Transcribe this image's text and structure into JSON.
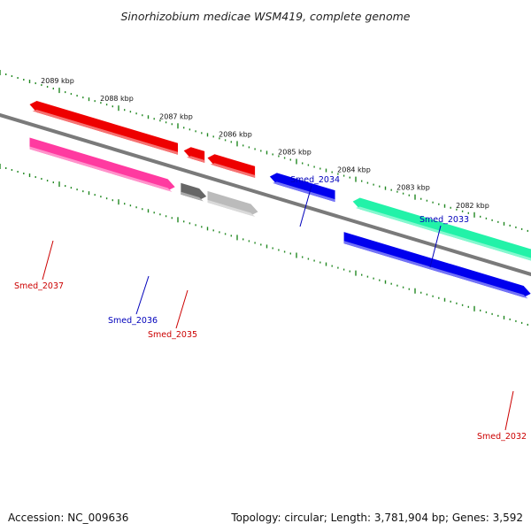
{
  "title": "Sinorhizobium medicae WSM419, complete genome",
  "scale_labels": [
    {
      "text": "2089 kbp",
      "pos": 2089
    },
    {
      "text": "2088 kbp",
      "pos": 2088
    },
    {
      "text": "2087 kbp",
      "pos": 2087
    },
    {
      "text": "2086 kbp",
      "pos": 2086
    },
    {
      "text": "2085 kbp",
      "pos": 2085
    },
    {
      "text": "2084 kbp",
      "pos": 2084
    },
    {
      "text": "2083 kbp",
      "pos": 2083
    },
    {
      "text": "2082 kbp",
      "pos": 2082
    }
  ],
  "genes": [
    {
      "name": "Smed_2037",
      "label": "Smed_2037",
      "color": "#ff3aa0",
      "ring": "inner",
      "strand": "reverse",
      "start": 2087.05,
      "end": 2089.5
    },
    {
      "name": "Smed_2037b",
      "label": "",
      "color": "#ee0000",
      "ring": "outer",
      "strand": "forward",
      "start": 2087.0,
      "end": 2089.5
    },
    {
      "name": "Smed_2036",
      "label": "Smed_2036",
      "color": "#ee0000",
      "ring": "outer",
      "strand": "forward",
      "start": 2086.55,
      "end": 2086.9
    },
    {
      "name": "Smed_2036b",
      "label": "",
      "color": "#666666",
      "ring": "inner",
      "strand": "reverse",
      "start": 2086.52,
      "end": 2086.95
    },
    {
      "name": "Smed_2035",
      "label": "Smed_2035",
      "color": "#bbbbbb",
      "ring": "inner",
      "strand": "reverse",
      "start": 2085.65,
      "end": 2086.5
    },
    {
      "name": "Smed_2035b",
      "label": "",
      "color": "#ee0000",
      "ring": "outer",
      "strand": "forward",
      "start": 2085.7,
      "end": 2086.5
    },
    {
      "name": "Smed_2034",
      "label": "Smed_2034",
      "color": "#0000ee",
      "ring": "outer",
      "strand": "forward",
      "start": 2084.35,
      "end": 2085.45
    },
    {
      "name": "Smed_2033",
      "label": "Smed_2033",
      "color": "#22f2a8",
      "ring": "outer",
      "strand": "forward",
      "start": 2081.0,
      "end": 2084.05
    },
    {
      "name": "Smed_2033b",
      "label": "",
      "color": "#0000ee",
      "ring": "inner",
      "strand": "reverse",
      "start": 2081.05,
      "end": 2084.2
    },
    {
      "name": "Smed_2032",
      "label": "Smed_2032",
      "color": "#ee0000",
      "ring": "inner",
      "strand": "reverse",
      "start": 2080.0,
      "end": 2080.6
    }
  ],
  "gene_label_colors": {
    "forward": "#0000bb",
    "reverse": "#cc0000"
  },
  "tick_color": "#228822",
  "backbone_color": "#7a7a7a",
  "accession": "Accession: NC_009636",
  "topology": "Topology: circular; Length: 3,781,904 bp; Genes: 3,592"
}
